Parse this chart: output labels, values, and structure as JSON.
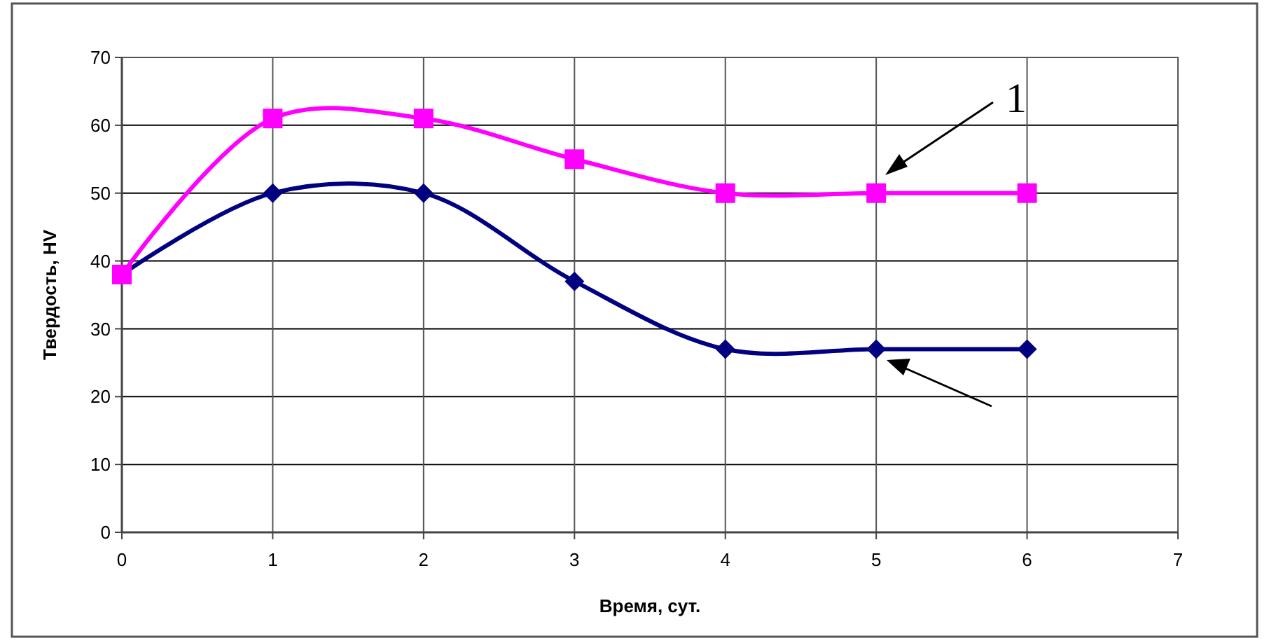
{
  "chart_data": {
    "type": "line",
    "xlabel": "Время, сут.",
    "ylabel": "Твердость, HV",
    "x": [
      0,
      1,
      2,
      3,
      4,
      5,
      6
    ],
    "series": [
      {
        "color": "#000080",
        "marker": "diamond",
        "values": [
          38,
          50,
          50,
          37,
          27,
          27,
          27
        ]
      },
      {
        "color": "#ff00ff",
        "marker": "square",
        "values": [
          38,
          61,
          61,
          55,
          50,
          50,
          50
        ]
      }
    ],
    "xlim": [
      0,
      7
    ],
    "xticks": [
      0,
      1,
      2,
      3,
      4,
      5,
      6,
      7
    ],
    "ylim": [
      0,
      70
    ],
    "yticks": [
      0,
      10,
      20,
      30,
      40,
      50,
      60,
      70
    ],
    "grid": true,
    "annotations": [
      "1"
    ]
  }
}
